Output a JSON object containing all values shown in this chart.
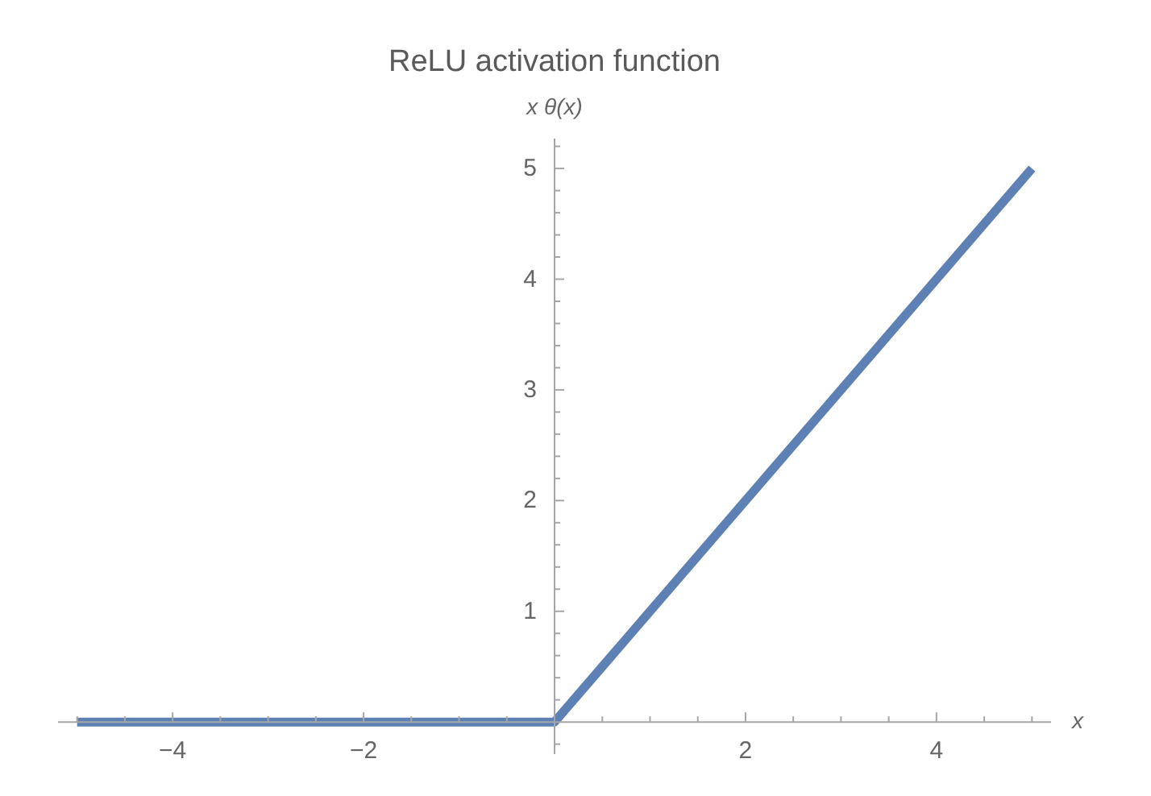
{
  "chart_data": {
    "type": "line",
    "title": "ReLU activation function",
    "xlabel": "x",
    "ylabel": "x θ(x)",
    "x": [
      -5,
      0,
      5
    ],
    "series": [
      {
        "color": "#5e81b5",
        "values": [
          0,
          0,
          5
        ]
      }
    ],
    "xlim": [
      -5.2,
      5.2
    ],
    "ylim": [
      -0.29,
      5.27
    ],
    "xticks": [
      {
        "value": -5,
        "label": null
      },
      {
        "value": -4.5,
        "label": null
      },
      {
        "value": -4,
        "label": "−4"
      },
      {
        "value": -3.5,
        "label": null
      },
      {
        "value": -3,
        "label": null
      },
      {
        "value": -2.5,
        "label": null
      },
      {
        "value": -2,
        "label": "−2"
      },
      {
        "value": -1.5,
        "label": null
      },
      {
        "value": -1,
        "label": null
      },
      {
        "value": -0.5,
        "label": null
      },
      {
        "value": 0.5,
        "label": null
      },
      {
        "value": 1,
        "label": null
      },
      {
        "value": 1.5,
        "label": null
      },
      2,
      {
        "value": 2.5,
        "label": null
      },
      {
        "value": 3,
        "label": null
      },
      {
        "value": 3.5,
        "label": null
      },
      4,
      {
        "value": 4.5,
        "label": null
      },
      {
        "value": 5,
        "label": null
      }
    ],
    "yticks": [
      {
        "value": -0.2,
        "label": null
      },
      {
        "value": 0.2,
        "label": null
      },
      {
        "value": 0.4,
        "label": null
      },
      {
        "value": 0.6,
        "label": null
      },
      {
        "value": 0.8,
        "label": null
      },
      1,
      {
        "value": 1.2,
        "label": null
      },
      {
        "value": 1.4,
        "label": null
      },
      {
        "value": 1.6,
        "label": null
      },
      {
        "value": 1.8,
        "label": null
      },
      2,
      {
        "value": 2.2,
        "label": null
      },
      {
        "value": 2.4,
        "label": null
      },
      {
        "value": 2.6,
        "label": null
      },
      {
        "value": 2.8,
        "label": null
      },
      3,
      {
        "value": 3.2,
        "label": null
      },
      {
        "value": 3.4,
        "label": null
      },
      {
        "value": 3.6,
        "label": null
      },
      {
        "value": 3.8,
        "label": null
      },
      4,
      {
        "value": 4.2,
        "label": null
      },
      {
        "value": 4.4,
        "label": null
      },
      {
        "value": 4.6,
        "label": null
      },
      {
        "value": 4.8,
        "label": null
      },
      5,
      {
        "value": 5.2,
        "label": null
      }
    ]
  }
}
